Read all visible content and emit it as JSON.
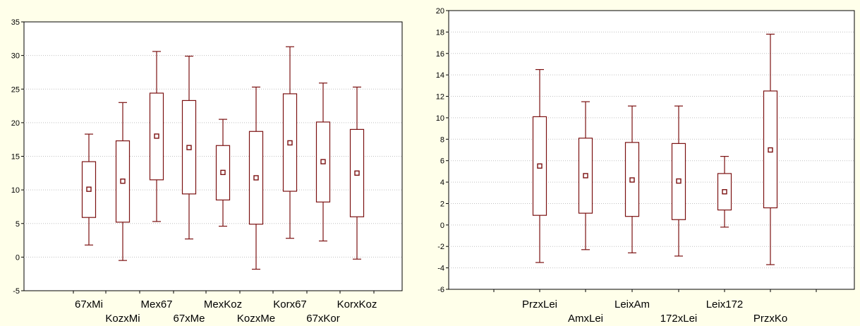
{
  "colors": {
    "box": "#7b1111",
    "panel_background": "#ffffea",
    "grid": "#c0c0c0"
  },
  "chart_data": [
    {
      "type": "box",
      "title": "",
      "xlabel": "",
      "ylabel": "",
      "ylim": [
        -5,
        35
      ],
      "yticks": [
        -5,
        0,
        5,
        10,
        15,
        20,
        25,
        30,
        35
      ],
      "grid": true,
      "legend": "none",
      "categories": [
        "67xMi",
        "KozxMi",
        "Mex67",
        "67xMe",
        "MexKoz",
        "KozxMe",
        "Korx67",
        "67xKor",
        "KorxKoz"
      ],
      "series": [
        {
          "mean": [
            10.1,
            11.3,
            18.0,
            16.3,
            12.6,
            11.8,
            17.0,
            14.2,
            12.5
          ],
          "box_low": [
            5.9,
            5.2,
            11.5,
            9.4,
            8.5,
            4.9,
            9.8,
            8.2,
            6.0
          ],
          "box_high": [
            14.2,
            17.3,
            24.4,
            23.3,
            16.6,
            18.7,
            24.3,
            20.1,
            19.0
          ],
          "whisker_low": [
            1.8,
            -0.5,
            5.3,
            2.7,
            4.6,
            -1.8,
            2.8,
            2.4,
            -0.3
          ],
          "whisker_high": [
            18.3,
            23.0,
            30.6,
            29.9,
            20.5,
            25.3,
            31.3,
            25.9,
            25.3
          ]
        }
      ]
    },
    {
      "type": "box",
      "title": "",
      "xlabel": "",
      "ylabel": "",
      "ylim": [
        -6,
        20
      ],
      "yticks": [
        -6,
        -4,
        -2,
        0,
        2,
        4,
        6,
        8,
        10,
        12,
        14,
        16,
        18,
        20
      ],
      "grid": true,
      "legend": "none",
      "categories": [
        "PrzxLei",
        "AmxLei",
        "LeixAm",
        "172xLei",
        "Leix172",
        "PrzxKo"
      ],
      "series": [
        {
          "mean": [
            5.5,
            4.6,
            4.2,
            4.1,
            3.1,
            7.0
          ],
          "box_low": [
            0.9,
            1.1,
            0.8,
            0.5,
            1.4,
            1.6
          ],
          "box_high": [
            10.1,
            8.1,
            7.7,
            7.6,
            4.8,
            12.5
          ],
          "whisker_low": [
            -3.5,
            -2.3,
            -2.6,
            -2.9,
            -0.2,
            -3.7
          ],
          "whisker_high": [
            14.5,
            11.5,
            11.1,
            11.1,
            6.4,
            17.8
          ]
        }
      ]
    }
  ]
}
